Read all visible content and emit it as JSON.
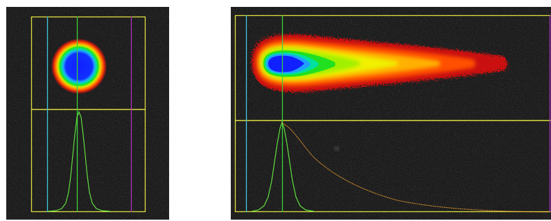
{
  "colors": {
    "frame": "#e0e040",
    "cyan_line": "#40c8e0",
    "green_line": "#3ad23a",
    "magenta_line": "#b030c0",
    "profile_green": "#60e040",
    "profile_orange": "#f0a030",
    "background": "#1c1c1c",
    "colormap": [
      "#1020ff",
      "#20a0ff",
      "#00e0a0",
      "#20e020",
      "#a0f000",
      "#f0f000",
      "#ffb000",
      "#ff5000",
      "#e81010"
    ]
  }
}
